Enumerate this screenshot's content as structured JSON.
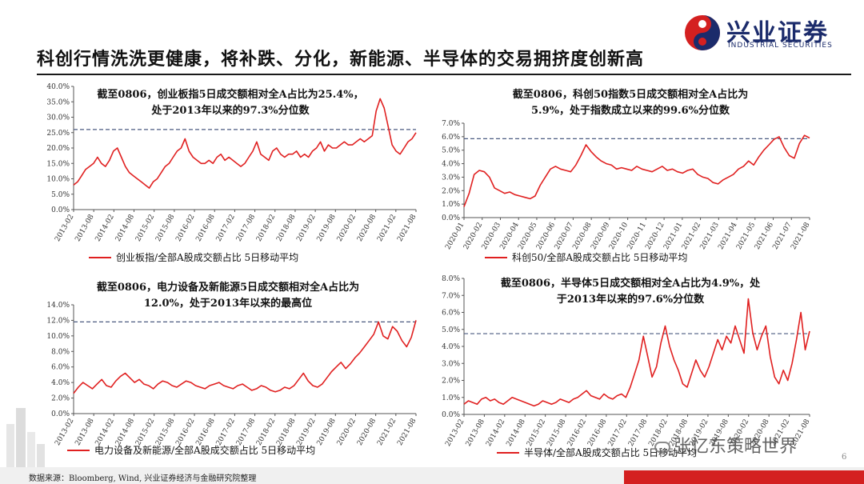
{
  "title": "科创行情洗洗更健康，将补跌、分化，新能源、半导体的交易拥挤度创新高",
  "logo": {
    "name": "兴业证券",
    "english": "INDUSTRIAL SECURITIES"
  },
  "source": "数据来源：Bloomberg, Wind, 兴业证券经济与金融研究院整理",
  "page_number": "6",
  "watermark": "张忆东策略世界",
  "colors": {
    "line": "#e02020",
    "dash": "#4a5a80",
    "axis": "#555555"
  },
  "chart_data": [
    {
      "type": "line",
      "annotation": [
        "截至0806，创业板指5日成交额相对全A占比为25.4%，",
        "处于2013年以来的97.3%分位数"
      ],
      "legend": "创业板指/全部A股成交额占比 5日移动平均",
      "ylim": [
        0,
        40
      ],
      "yticks": [
        "0.0%",
        "5.0%",
        "10.0%",
        "15.0%",
        "20.0%",
        "25.0%",
        "30.0%",
        "35.0%",
        "40.0%"
      ],
      "xticks": [
        "2013-02",
        "2013-08",
        "2014-02",
        "2014-08",
        "2015-02",
        "2015-08",
        "2016-02",
        "2016-08",
        "2017-02",
        "2017-08",
        "2018-02",
        "2018-08",
        "2019-02",
        "2019-08",
        "2020-02",
        "2020-08",
        "2021-02",
        "2021-08"
      ],
      "reference_line": 26,
      "values": [
        8,
        9,
        11,
        13,
        14,
        15,
        17,
        15,
        14,
        16,
        19,
        20,
        17,
        14,
        12,
        11,
        10,
        9,
        8,
        7,
        9,
        10,
        12,
        14,
        15,
        17,
        19,
        20,
        23,
        19,
        17,
        16,
        15,
        15,
        16,
        15,
        17,
        18,
        16,
        17,
        16,
        15,
        14,
        15,
        17,
        19,
        22,
        18,
        17,
        16,
        19,
        20,
        18,
        17,
        18,
        18,
        19,
        17,
        18,
        17,
        19,
        20,
        22,
        19,
        21,
        20,
        20,
        21,
        22,
        21,
        21,
        22,
        23,
        22,
        23,
        24,
        32,
        36,
        33,
        27,
        21,
        19,
        18,
        20,
        22,
        23,
        25
      ]
    },
    {
      "type": "line",
      "annotation": [
        "截至0806，科创50指数5日成交额相对全A占比为",
        "5.9%，处于指数成立以来的99.6%分位数"
      ],
      "legend": "科创50/全部A股成交额占比 5日移动平均",
      "ylim": [
        0,
        7
      ],
      "yticks": [
        "0.0%",
        "1.0%",
        "2.0%",
        "3.0%",
        "4.0%",
        "5.0%",
        "6.0%",
        "7.0%"
      ],
      "xticks": [
        "2020-01",
        "2020-02",
        "2020-03",
        "2020-04",
        "2020-05",
        "2020-06",
        "2020-07",
        "2020-08",
        "2020-09",
        "2020-10",
        "2020-11",
        "2020-12",
        "2021-01",
        "2021-02",
        "2021-03",
        "2021-04",
        "2021-05",
        "2021-06",
        "2021-07",
        "2021-08"
      ],
      "reference_line": 5.85,
      "values": [
        0.8,
        1.8,
        3.2,
        3.5,
        3.4,
        3.0,
        2.2,
        2.0,
        1.8,
        1.9,
        1.7,
        1.6,
        1.5,
        1.4,
        1.6,
        2.4,
        3.0,
        3.6,
        3.8,
        3.6,
        3.5,
        3.4,
        3.9,
        4.6,
        5.4,
        4.9,
        4.5,
        4.2,
        4.0,
        3.9,
        3.6,
        3.7,
        3.6,
        3.5,
        3.8,
        3.6,
        3.5,
        3.4,
        3.6,
        3.8,
        3.5,
        3.6,
        3.4,
        3.3,
        3.5,
        3.6,
        3.2,
        3.0,
        2.9,
        2.6,
        2.5,
        2.8,
        3.0,
        3.2,
        3.6,
        3.8,
        4.2,
        3.9,
        4.5,
        5.0,
        5.4,
        5.8,
        6.0,
        5.2,
        4.6,
        4.4,
        5.5,
        6.1,
        5.9
      ]
    },
    {
      "type": "line",
      "annotation": [
        "截至0806，电力设备及新能源5日成交额相对全A占比为",
        "12.0%，处于2013年以来的最高位"
      ],
      "legend": "电力设备及新能源/全部A股成交额占比 5日移动平均",
      "ylim": [
        0,
        14
      ],
      "yticks": [
        "0.0%",
        "2.0%",
        "4.0%",
        "6.0%",
        "8.0%",
        "10.0%",
        "12.0%",
        "14.0%"
      ],
      "xticks": [
        "2013-02",
        "2013-08",
        "2014-02",
        "2014-08",
        "2015-02",
        "2015-08",
        "2016-02",
        "2016-08",
        "2017-02",
        "2017-08",
        "2018-02",
        "2018-08",
        "2019-02",
        "2019-08",
        "2020-02",
        "2020-08",
        "2021-02",
        "2021-08"
      ],
      "reference_line": 11.8,
      "values": [
        2.6,
        3.4,
        4.0,
        3.6,
        3.2,
        3.8,
        4.4,
        3.6,
        3.4,
        4.2,
        4.8,
        5.2,
        4.6,
        4.0,
        4.4,
        3.8,
        3.6,
        3.2,
        3.8,
        4.2,
        4.0,
        3.6,
        3.4,
        3.8,
        4.2,
        4.0,
        3.6,
        3.4,
        3.2,
        3.6,
        3.8,
        4.0,
        3.6,
        3.4,
        3.2,
        3.6,
        3.8,
        3.4,
        3.0,
        3.2,
        3.6,
        3.4,
        3.0,
        2.8,
        3.0,
        3.4,
        3.2,
        3.6,
        4.4,
        5.2,
        4.2,
        3.6,
        3.4,
        3.8,
        4.6,
        5.4,
        6.0,
        6.6,
        5.8,
        6.4,
        7.2,
        7.8,
        8.6,
        9.4,
        10.2,
        11.8,
        10.0,
        9.6,
        11.2,
        10.6,
        9.4,
        8.6,
        9.8,
        12.0
      ]
    },
    {
      "type": "line",
      "annotation": [
        "截至0806，半导体5日成交额相对全A占比为4.9%，处",
        "于2013年以来的97.6%分位数"
      ],
      "legend": "半导体/全部A股成交额占比 5日移动平均",
      "ylim": [
        0,
        8
      ],
      "yticks": [
        "0.0%",
        "1.0%",
        "2.0%",
        "3.0%",
        "4.0%",
        "5.0%",
        "6.0%",
        "7.0%",
        "8.0%"
      ],
      "xticks": [
        "2013-02",
        "2013-08",
        "2014-02",
        "2014-08",
        "2015-02",
        "2015-08",
        "2016-02",
        "2016-08",
        "2017-02",
        "2017-08",
        "2018-02",
        "2018-08",
        "2019-02",
        "2019-08",
        "2020-02",
        "2020-08",
        "2021-02",
        "2021-08"
      ],
      "reference_line": 4.75,
      "values": [
        0.6,
        0.8,
        0.7,
        0.6,
        0.9,
        1.0,
        0.8,
        0.9,
        0.7,
        0.6,
        0.8,
        1.0,
        0.9,
        0.8,
        0.7,
        0.6,
        0.5,
        0.6,
        0.8,
        0.7,
        0.6,
        0.7,
        0.9,
        0.8,
        0.7,
        0.9,
        1.0,
        1.2,
        1.4,
        1.1,
        1.0,
        0.9,
        1.2,
        1.0,
        0.9,
        1.1,
        1.2,
        1.0,
        1.6,
        2.4,
        3.2,
        4.6,
        3.4,
        2.2,
        2.8,
        4.2,
        5.2,
        4.0,
        3.2,
        2.6,
        1.8,
        1.6,
        2.4,
        3.2,
        2.6,
        2.2,
        2.8,
        3.6,
        4.4,
        3.8,
        4.6,
        4.2,
        5.2,
        4.4,
        3.6,
        6.8,
        4.8,
        3.8,
        4.6,
        5.2,
        3.4,
        2.2,
        1.8,
        2.6,
        2.0,
        3.0,
        4.4,
        6.0,
        3.8,
        4.9
      ]
    }
  ]
}
